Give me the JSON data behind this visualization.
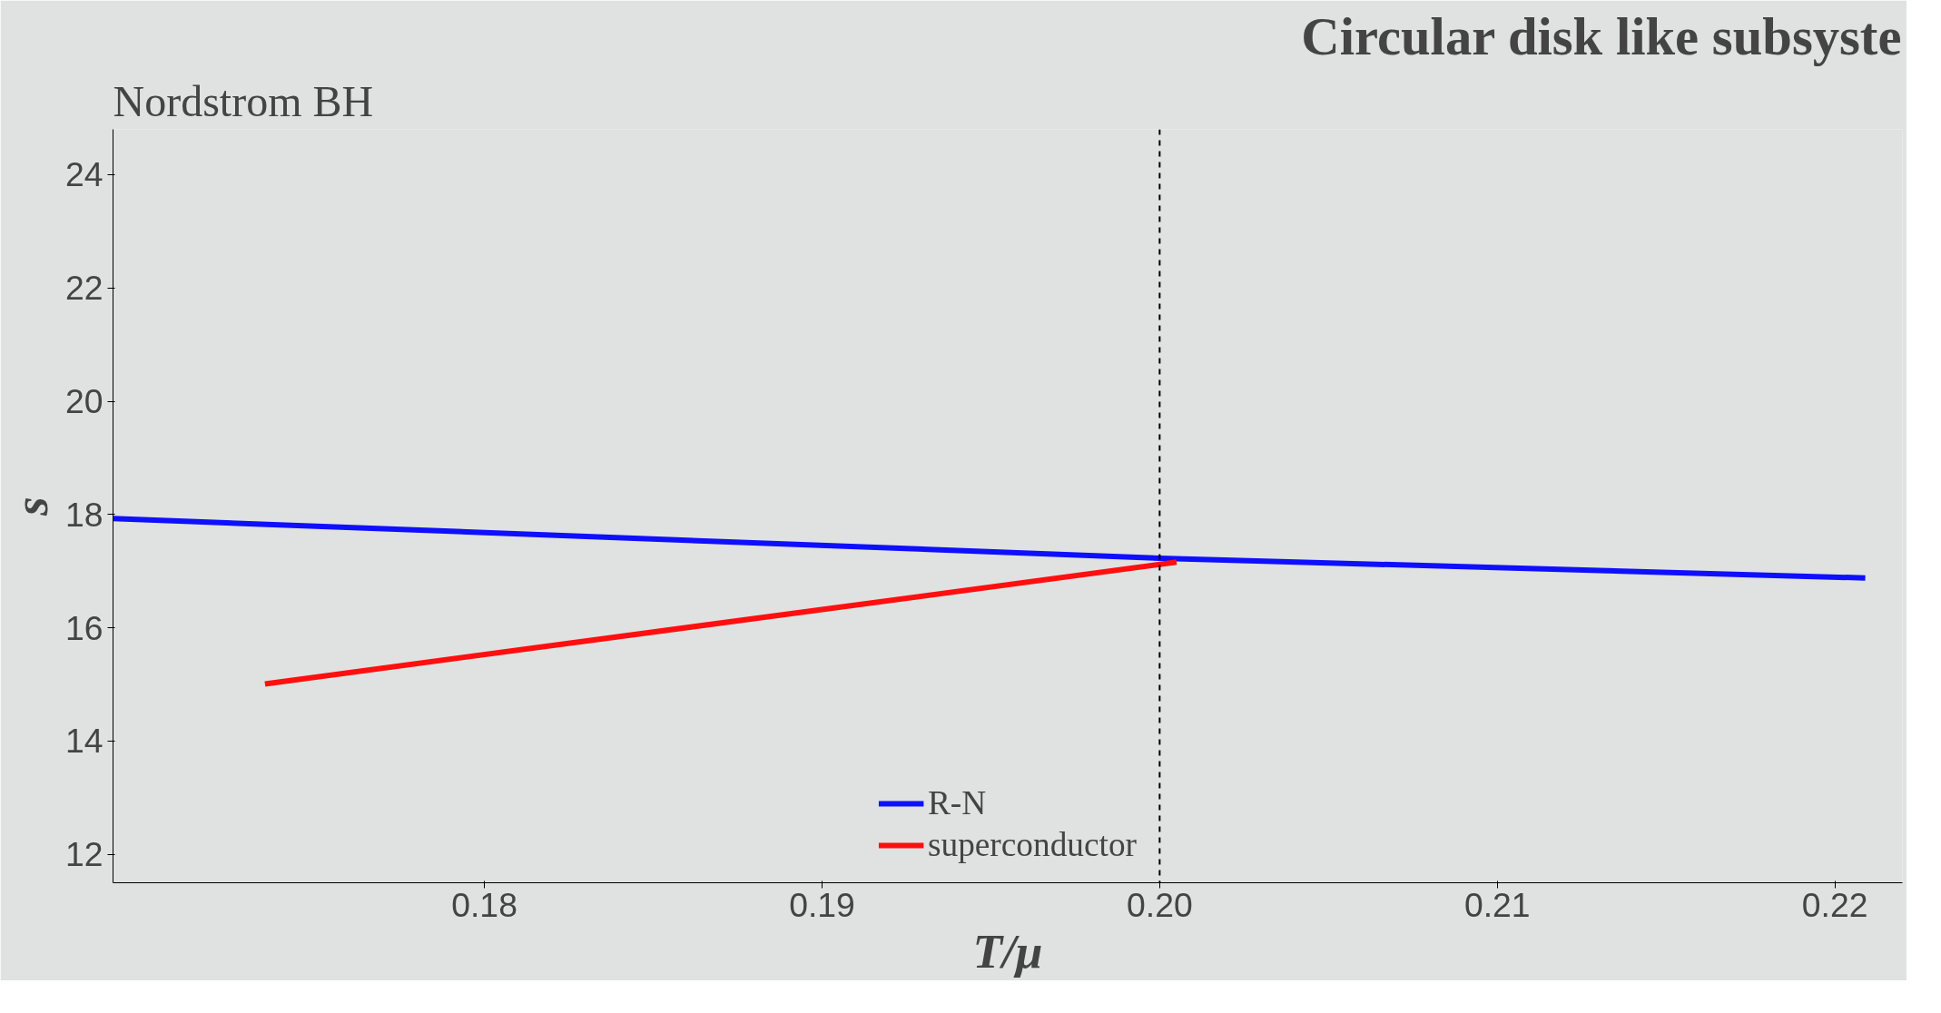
{
  "chart_data": {
    "type": "line",
    "title": "Nordstrom BH",
    "subtitle": "Circular disk like subsyste",
    "xlabel": "T/μ",
    "ylabel": "s",
    "xlim": [
      0.169,
      0.222
    ],
    "ylim": [
      11.5,
      24.8
    ],
    "xticks": [
      0.18,
      0.19,
      {
        "value": 0.2,
        "label": "0.20"
      },
      0.21,
      0.22
    ],
    "yticks": [
      12,
      14,
      16,
      18,
      20,
      22,
      24
    ],
    "series": [
      {
        "name": "R-N",
        "color": "#0f0fff",
        "x": [
          0.169,
          0.2,
          0.2209
        ],
        "values": [
          17.93,
          17.23,
          16.88
        ]
      },
      {
        "name": "superconductor",
        "color": "#ff0f0f",
        "x": [
          0.1735,
          0.2005
        ],
        "values": [
          15.01,
          17.16
        ]
      }
    ],
    "ref_lines": [
      {
        "axis": "x",
        "value": 0.2,
        "color": "#000000",
        "line_style": "dashed"
      }
    ],
    "grid": false,
    "legend": "bottom",
    "line_style": "solid"
  }
}
